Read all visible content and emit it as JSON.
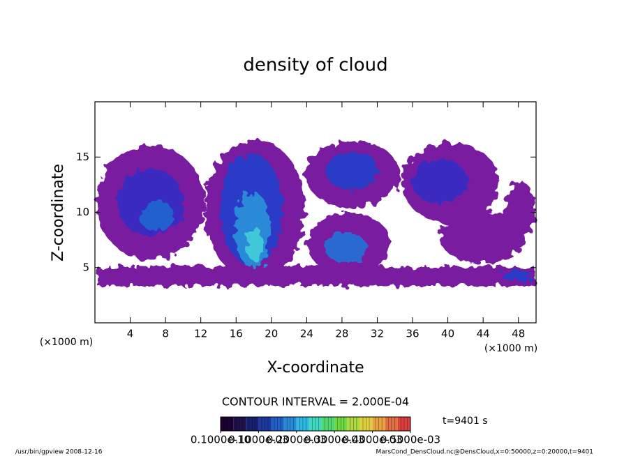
{
  "chart_data": {
    "type": "contour",
    "title": "density of cloud",
    "x_label": "X-coordinate",
    "y_label": "Z-coordinate",
    "x_unit": "(×1000 m)",
    "y_unit": "(×1000 m)",
    "xlim": [
      0,
      50
    ],
    "xticks": [
      4,
      8,
      12,
      16,
      20,
      24,
      28,
      32,
      36,
      40,
      44,
      48
    ],
    "ylim": [
      0,
      20
    ],
    "yticks": [
      5,
      10,
      15
    ],
    "contour_interval": "CONTOUR INTERVAL = 2.000E-04",
    "time_label": "t=9401 s",
    "colorbar": {
      "lim": [
        0,
        0.0005
      ],
      "ticks": [
        {
          "value": 1e-11,
          "label": "0.1000e-10"
        },
        {
          "value": 0.0001,
          "label": "0.1000e-03"
        },
        {
          "value": 0.0002,
          "label": "0.2000e-03"
        },
        {
          "value": 0.0003,
          "label": "0.3000e-03"
        },
        {
          "value": 0.0004,
          "label": "0.4000e-03"
        },
        {
          "value": 0.0005,
          "label": "0.5000e-03"
        }
      ],
      "colors": [
        "#1a0033",
        "#20104a",
        "#1a2070",
        "#1a3aa0",
        "#2060c8",
        "#2a8ad8",
        "#30b8e0",
        "#40d8c0",
        "#50d870",
        "#70d840",
        "#b0d840",
        "#e0d040",
        "#e8a040",
        "#e07040",
        "#d84040"
      ]
    },
    "footer_left": "/usr/bin/gpview  2008-12-16",
    "footer_right": "MarsCond_DensCloud.nc@DensCloud,x=0:50000,z=0:20000,t=9401"
  }
}
